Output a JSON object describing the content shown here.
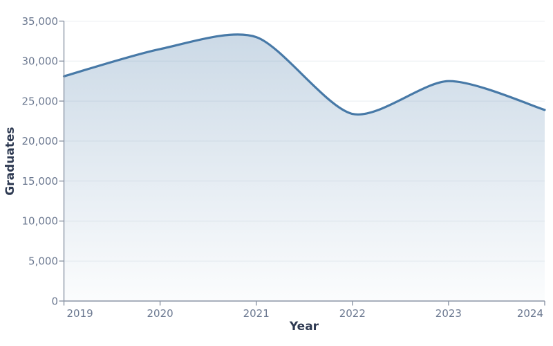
{
  "chart_data": {
    "type": "area",
    "title": "",
    "xlabel": "Year",
    "ylabel": "Graduates",
    "x": [
      2019,
      2020,
      2021,
      2022,
      2023,
      2024
    ],
    "x_labels": [
      "2019",
      "2020",
      "2021",
      "2022",
      "2023",
      "2024"
    ],
    "series": [
      {
        "name": "Graduates",
        "values": [
          28100,
          31500,
          33000,
          23400,
          27500,
          23900
        ]
      }
    ],
    "ylim": [
      0,
      35000
    ],
    "ytick_step": 5000,
    "ytick_labels": [
      "0",
      "5,000",
      "10,000",
      "15,000",
      "20,000",
      "25,000",
      "30,000",
      "35,000"
    ],
    "grid": "horizontal",
    "legend": "none",
    "smooth": true,
    "colors": {
      "line": "#4779a7",
      "fill": "#4779a7",
      "fill_top_opacity": 0.28,
      "fill_bottom_opacity": 0.02,
      "grid": "#e9edf1",
      "axis": "#8b95a5",
      "tick_text": "#6b7890",
      "title_text": "#2e3a52"
    }
  }
}
